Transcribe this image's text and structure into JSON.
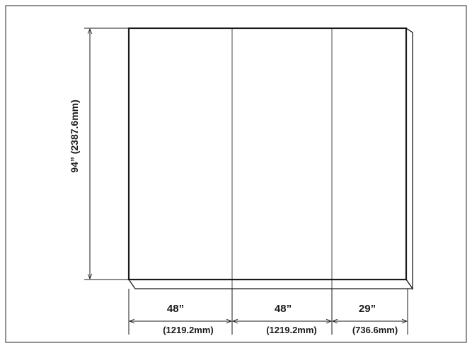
{
  "dimensions": {
    "height": {
      "imperial": "94”",
      "metric": "(2387.6mm)"
    },
    "widths": [
      {
        "imperial": "48”",
        "metric": "(1219.2mm)"
      },
      {
        "imperial": "48”",
        "metric": "(1219.2mm)"
      },
      {
        "imperial": "29”",
        "metric": "(736.6mm)"
      }
    ]
  },
  "colors": {
    "frame": "#6e6e6e",
    "line": "#1a1a1a",
    "panel": "#ffffff",
    "background": "#ffffff"
  }
}
